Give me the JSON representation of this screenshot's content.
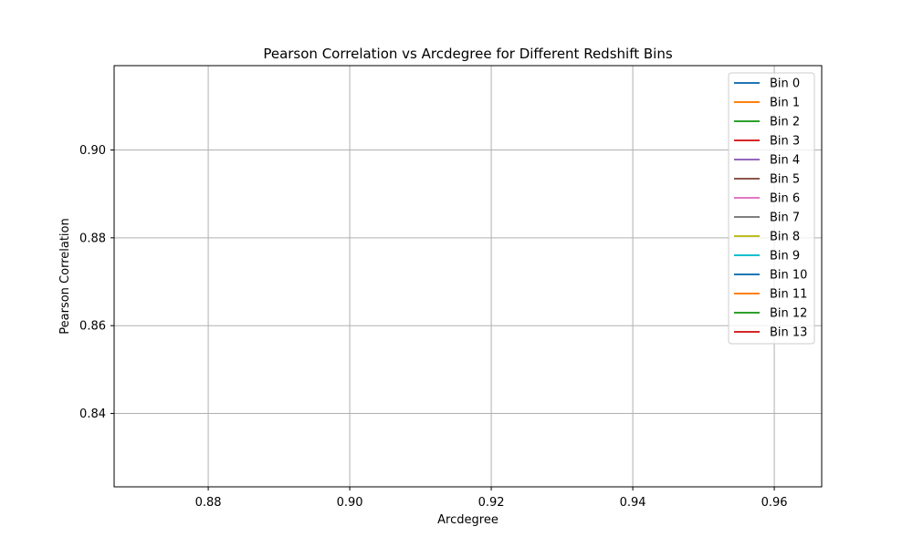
{
  "chart_data": {
    "type": "line",
    "title": "Pearson Correlation vs Arcdegree for Different Redshift Bins",
    "xlabel": "Arcdegree",
    "ylabel": "Pearson Correlation",
    "xlim": [
      0.8667,
      0.9667
    ],
    "ylim": [
      0.8233,
      0.9192
    ],
    "xticks": [
      0.88,
      0.9,
      0.92,
      0.94,
      0.96
    ],
    "xtick_labels": [
      "0.88",
      "0.90",
      "0.92",
      "0.94",
      "0.96"
    ],
    "yticks": [
      0.84,
      0.86,
      0.88,
      0.9
    ],
    "ytick_labels": [
      "0.84",
      "0.86",
      "0.88",
      "0.90"
    ],
    "grid": true,
    "legend_position": "top-right",
    "series": [
      {
        "name": "Bin 0",
        "color": "#1f77b4",
        "x": [],
        "y": []
      },
      {
        "name": "Bin 1",
        "color": "#ff7f0e",
        "x": [],
        "y": []
      },
      {
        "name": "Bin 2",
        "color": "#2ca02c",
        "x": [],
        "y": []
      },
      {
        "name": "Bin 3",
        "color": "#d62728",
        "x": [],
        "y": []
      },
      {
        "name": "Bin 4",
        "color": "#9467bd",
        "x": [],
        "y": []
      },
      {
        "name": "Bin 5",
        "color": "#8c564b",
        "x": [],
        "y": []
      },
      {
        "name": "Bin 6",
        "color": "#e377c2",
        "x": [],
        "y": []
      },
      {
        "name": "Bin 7",
        "color": "#7f7f7f",
        "x": [],
        "y": []
      },
      {
        "name": "Bin 8",
        "color": "#bcbd22",
        "x": [],
        "y": []
      },
      {
        "name": "Bin 9",
        "color": "#17becf",
        "x": [],
        "y": []
      },
      {
        "name": "Bin 10",
        "color": "#1f77b4",
        "x": [],
        "y": []
      },
      {
        "name": "Bin 11",
        "color": "#ff7f0e",
        "x": [],
        "y": []
      },
      {
        "name": "Bin 12",
        "color": "#2ca02c",
        "x": [],
        "y": []
      },
      {
        "name": "Bin 13",
        "color": "#d62728",
        "x": [],
        "y": []
      }
    ]
  }
}
